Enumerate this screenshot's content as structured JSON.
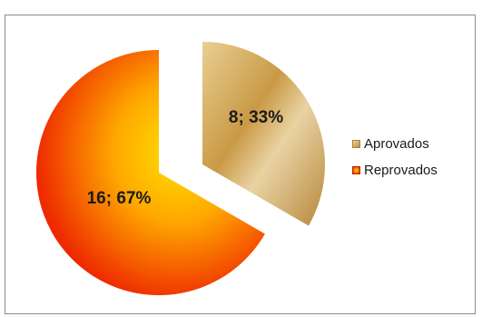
{
  "chart_data": {
    "type": "pie",
    "title": "",
    "categories": [
      "Aprovados",
      "Reprovados"
    ],
    "values": [
      8,
      16
    ],
    "percentages": [
      "33%",
      "67%"
    ],
    "data_labels": [
      "8; 33%",
      "16; 67%"
    ],
    "legend_placement": "right",
    "colors": {
      "Aprovados": "#d8b26a",
      "Reprovados": "#f03a00"
    }
  },
  "legend": {
    "items": [
      {
        "label": "Aprovados",
        "color": "#d8b26a"
      },
      {
        "label": "Reprovados",
        "color": "#f03a00"
      }
    ]
  }
}
